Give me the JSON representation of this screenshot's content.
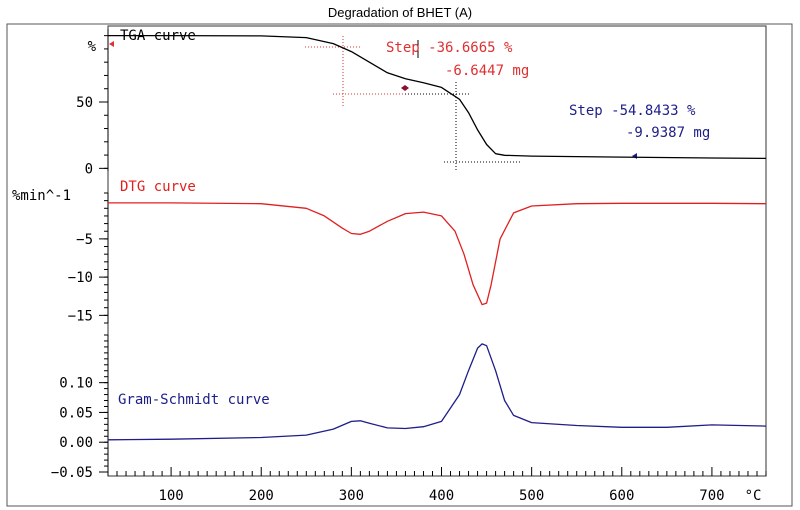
{
  "chart_data": {
    "title": "Degradation of BHET (A)",
    "type": "line",
    "x_axis": {
      "unit": "°C",
      "ticks": [
        100,
        200,
        300,
        400,
        500,
        600,
        700
      ],
      "range": [
        30,
        760
      ]
    },
    "panels": [
      {
        "name": "tga",
        "label": "TGA curve",
        "unit": "%",
        "color": "#000000",
        "ylim": [
          -2,
          105
        ],
        "yticks": [
          0,
          50
        ],
        "x": [
          30,
          100,
          200,
          250,
          280,
          300,
          320,
          340,
          360,
          380,
          400,
          420,
          430,
          440,
          450,
          460,
          470,
          500,
          600,
          700,
          760
        ],
        "y": [
          100,
          100,
          99.8,
          98.5,
          94,
          88,
          80,
          72,
          67.5,
          64.5,
          61,
          52,
          42,
          29,
          18,
          11,
          9.8,
          9.2,
          8.5,
          7.8,
          7.5
        ],
        "annotations": [
          {
            "lines": [
              "Step -36.6665 %",
              "-6.6447 mg"
            ],
            "color": "#e03030"
          },
          {
            "lines": [
              "Step -54.8433 %",
              "-9.9387 mg"
            ],
            "color": "#1e1e8a"
          }
        ]
      },
      {
        "name": "dtg",
        "label": "DTG curve",
        "unit": "%min^-1",
        "color": "#e02020",
        "ylim": [
          -16,
          1
        ],
        "yticks": [
          -5,
          -10,
          -15
        ],
        "x": [
          30,
          100,
          200,
          250,
          270,
          290,
          300,
          310,
          320,
          340,
          360,
          380,
          400,
          415,
          425,
          435,
          445,
          450,
          455,
          465,
          480,
          500,
          550,
          600,
          700,
          760
        ],
        "y": [
          -0.3,
          -0.3,
          -0.4,
          -1.0,
          -2.0,
          -3.6,
          -4.3,
          -4.4,
          -4.0,
          -2.7,
          -1.7,
          -1.5,
          -2.0,
          -4.0,
          -7.0,
          -11.0,
          -13.6,
          -13.4,
          -11.0,
          -5.0,
          -1.6,
          -0.7,
          -0.4,
          -0.35,
          -0.35,
          -0.4
        ]
      },
      {
        "name": "gram_schmidt",
        "label": "Gram-Schmidt curve",
        "color": "#1e1e8a",
        "ylim": [
          -0.05,
          0.18
        ],
        "yticks": [
          -0.05,
          0.0,
          0.05,
          0.1
        ],
        "tick_labels": [
          "-0.05",
          "0.00",
          "0.05",
          "0.10"
        ],
        "x": [
          30,
          100,
          200,
          250,
          280,
          300,
          310,
          320,
          340,
          360,
          380,
          400,
          420,
          430,
          440,
          445,
          450,
          460,
          470,
          480,
          500,
          550,
          600,
          650,
          700,
          760
        ],
        "y": [
          0.004,
          0.005,
          0.008,
          0.012,
          0.022,
          0.035,
          0.036,
          0.032,
          0.024,
          0.023,
          0.026,
          0.035,
          0.08,
          0.12,
          0.158,
          0.165,
          0.162,
          0.12,
          0.07,
          0.045,
          0.033,
          0.028,
          0.025,
          0.025,
          0.029,
          0.027
        ]
      }
    ]
  }
}
